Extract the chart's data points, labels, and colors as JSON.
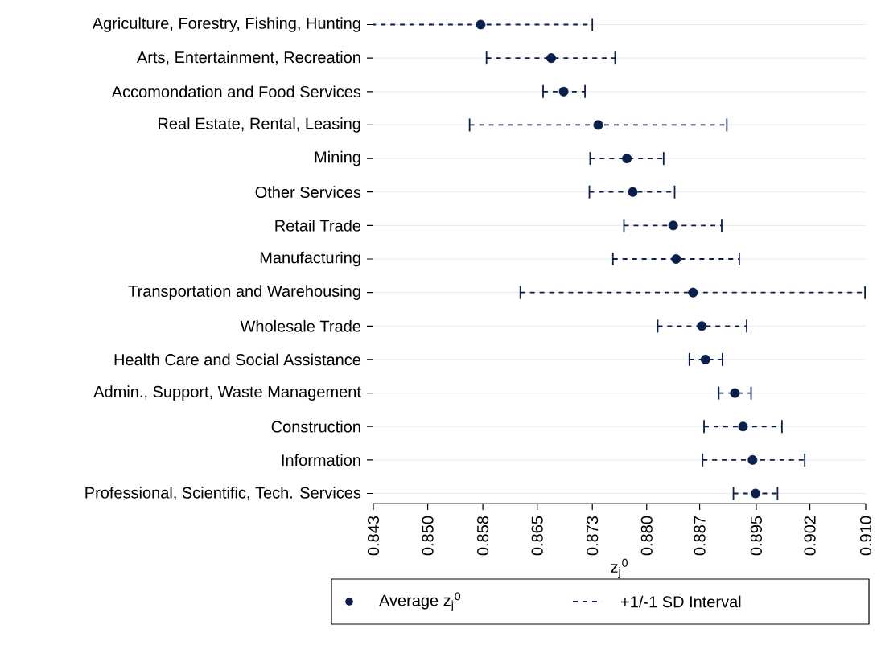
{
  "chart_data": {
    "type": "scatter",
    "orientation": "horizontal",
    "xlabel": "z$_{j}$$^{0}$",
    "categories": [
      "Agriculture, Forestry, Fishing, Hunting",
      "Arts, Entertainment, Recreation",
      "Accomondation and Food Services",
      "Real Estate, Rental, Leasing",
      "Mining",
      "Other Services",
      "Retail Trade",
      "Manufacturing",
      "Transportation and Warehousing",
      "Wholesale Trade",
      "Health Care and Social Assistance",
      "Admin., Support, Waste Management",
      "Construction",
      "Information",
      "Professional, Scientific, Tech. Services"
    ],
    "series": [
      {
        "name": "Average z$_{j}$$^{0}$",
        "color": "#0b1f4e",
        "values": [
          0.8576,
          0.8672,
          0.8689,
          0.8736,
          0.8775,
          0.8783,
          0.8838,
          0.8842,
          0.8865,
          0.8877,
          0.8882,
          0.8922,
          0.8933,
          0.8946,
          0.895
        ],
        "errors": [
          [
            0.8427,
            0.8728
          ],
          [
            0.8584,
            0.8759
          ],
          [
            0.8661,
            0.8718
          ],
          [
            0.8561,
            0.8911
          ],
          [
            0.8725,
            0.8825
          ],
          [
            0.8724,
            0.884
          ],
          [
            0.8771,
            0.8904
          ],
          [
            0.8756,
            0.8928
          ],
          [
            0.863,
            0.9099
          ],
          [
            0.8817,
            0.8938
          ],
          [
            0.886,
            0.8905
          ],
          [
            0.89,
            0.8944
          ],
          [
            0.888,
            0.8986
          ],
          [
            0.8878,
            0.9017
          ],
          [
            0.892,
            0.898
          ]
        ]
      }
    ],
    "xlim": [
      0.843,
      0.91
    ],
    "xticks": [
      {
        "value": 0.843,
        "label": "0.843"
      },
      {
        "value": 0.8504,
        "label": "0.850"
      },
      {
        "value": 0.8579,
        "label": "0.858"
      },
      {
        "value": 0.8653,
        "label": "0.865"
      },
      {
        "value": 0.8728,
        "label": "0.873"
      },
      {
        "value": 0.8802,
        "label": "0.880"
      },
      {
        "value": 0.8874,
        "label": "0.887"
      },
      {
        "value": 0.8951,
        "label": "0.895"
      },
      {
        "value": 0.9024,
        "label": "0.902"
      },
      {
        "value": 0.91,
        "label": "0.910"
      }
    ],
    "grid": "y",
    "legend": "bottom",
    "marker": "circle",
    "line_style": "dashed",
    "annotations": [
      "+1/-1 SD Interval"
    ]
  }
}
